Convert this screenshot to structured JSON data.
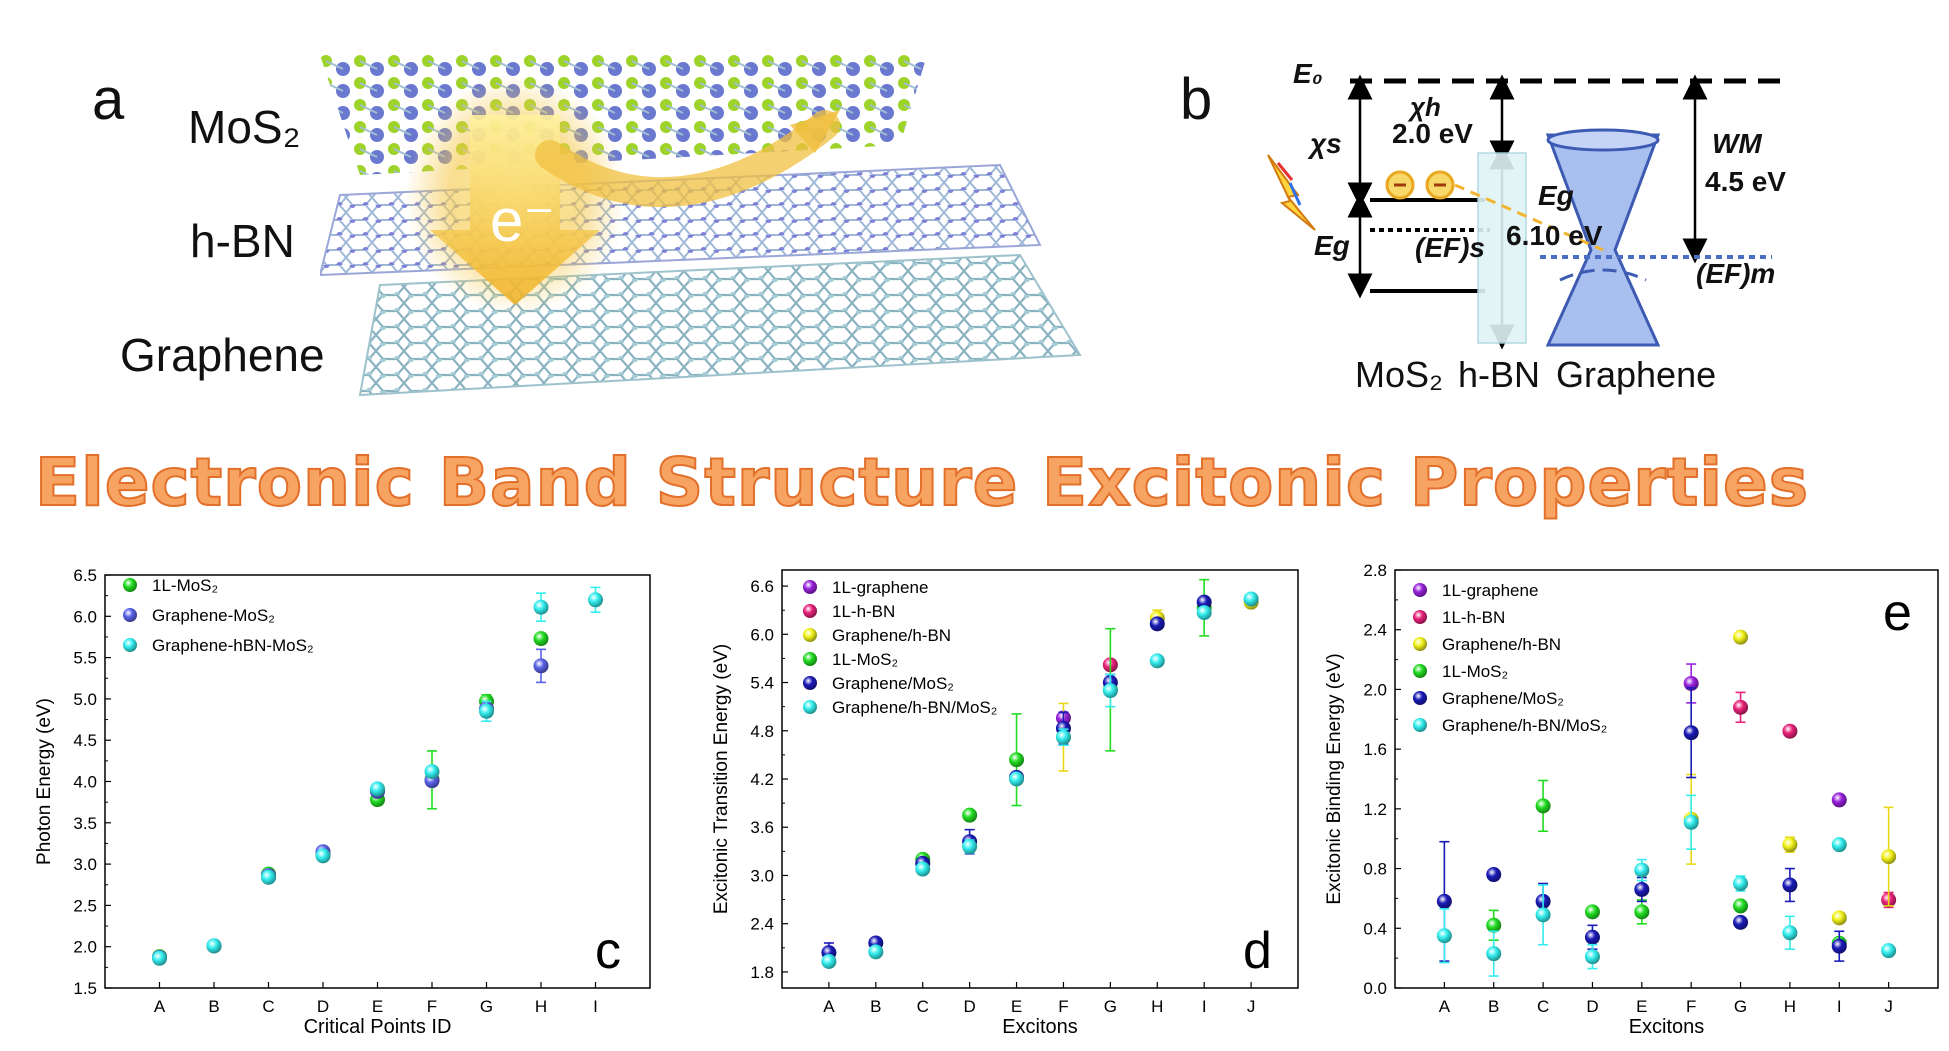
{
  "panel_a": {
    "letter": "a",
    "layers": [
      "MoS₂",
      "h-BN",
      "Graphene"
    ],
    "electron_label": "e⁻"
  },
  "panel_b": {
    "letter": "b",
    "E0": "E₀",
    "chi_s": "χs",
    "chi_h": "χh",
    "chi_h_value": "2.0 eV",
    "W_M": "WM",
    "W_M_value": "4.5 eV",
    "Eg_hbn": "Eg",
    "Eg_hbn_value": "6.10 eV",
    "Eg_mos2": "Eg",
    "EF_s": "(EF)s",
    "EF_m": "(EF)m",
    "bottom_labels": [
      "MoS₂",
      "h-BN",
      "Graphene"
    ]
  },
  "banners": {
    "left": "Electronic Band Structure",
    "right": "Excitonic Properties"
  },
  "colors": {
    "green": "#22dd22",
    "blue": "#5a62e8",
    "navy": "#1a1ab8",
    "cyan": "#33eeee",
    "purple": "#9922dd",
    "magenta": "#e8227a",
    "yellow": "#f2f21a"
  },
  "chart_data": [
    {
      "id": "c",
      "type": "scatter",
      "panel_letter": "c",
      "xlabel": "Critical Points ID",
      "ylabel": "Photon Energy (eV)",
      "categories": [
        "A",
        "B",
        "C",
        "D",
        "E",
        "F",
        "G",
        "H",
        "I"
      ],
      "ylim": [
        1.5,
        6.5
      ],
      "yticks": [
        1.5,
        2.0,
        2.5,
        3.0,
        3.5,
        4.0,
        4.5,
        5.0,
        5.5,
        6.0,
        6.5
      ],
      "legend_position": "top-left",
      "series": [
        {
          "name": "1L-MoS₂",
          "color": "#22dd22",
          "values": [
            1.88,
            2.01,
            2.88,
            3.12,
            3.78,
            4.02,
            4.97,
            5.73,
            null
          ],
          "errors": [
            0,
            0,
            0,
            0.03,
            0,
            0.35,
            0.08,
            0.02,
            null
          ]
        },
        {
          "name": "Graphene-MoS₂",
          "color": "#5a62e8",
          "values": [
            1.87,
            2.01,
            2.86,
            3.15,
            3.88,
            4.01,
            4.88,
            5.4,
            null
          ],
          "errors": [
            0,
            0,
            0,
            0.03,
            0,
            0.05,
            0.05,
            0.2,
            null
          ]
        },
        {
          "name": "Graphene-hBN-MoS₂",
          "color": "#33eeee",
          "values": [
            1.86,
            2.01,
            2.84,
            3.1,
            3.91,
            4.12,
            4.85,
            6.11,
            6.2
          ],
          "errors": [
            0,
            0,
            0,
            0.03,
            0,
            0.05,
            0.12,
            0.17,
            0.15
          ]
        }
      ]
    },
    {
      "id": "d",
      "type": "scatter",
      "panel_letter": "d",
      "xlabel": "Excitons",
      "ylabel": "Excitonic Transition Energy (eV)",
      "categories": [
        "A",
        "B",
        "C",
        "D",
        "E",
        "F",
        "G",
        "H",
        "I",
        "J"
      ],
      "ylim": [
        1.6,
        6.8
      ],
      "yticks": [
        1.8,
        2.4,
        3.0,
        3.6,
        4.2,
        4.8,
        5.4,
        6.0,
        6.6
      ],
      "legend_position": "top-left",
      "series": [
        {
          "name": "1L-graphene",
          "color": "#9922dd",
          "values": [
            null,
            null,
            null,
            null,
            null,
            4.96,
            null,
            null,
            null,
            null
          ],
          "errors": [
            null,
            null,
            null,
            null,
            null,
            0.05,
            null,
            null,
            null,
            null
          ]
        },
        {
          "name": "1L-h-BN",
          "color": "#e8227a",
          "values": [
            null,
            null,
            null,
            null,
            null,
            null,
            5.62,
            null,
            null,
            null
          ],
          "errors": [
            null,
            null,
            null,
            null,
            null,
            null,
            0.05,
            null,
            null,
            null
          ]
        },
        {
          "name": "Graphene/h-BN",
          "color": "#f2f21a",
          "values": [
            null,
            null,
            null,
            null,
            null,
            4.72,
            null,
            6.2,
            null,
            6.4
          ],
          "errors": [
            null,
            null,
            null,
            null,
            null,
            0.42,
            null,
            0.1,
            null,
            0.05
          ]
        },
        {
          "name": "1L-MoS₂",
          "color": "#22dd22",
          "values": [
            null,
            null,
            3.2,
            3.75,
            4.44,
            null,
            5.31,
            null,
            6.33,
            null
          ],
          "errors": [
            null,
            null,
            0.04,
            0.04,
            0.57,
            null,
            0.76,
            null,
            0.35,
            null
          ]
        },
        {
          "name": "Graphene/MoS₂",
          "color": "#1a1ab8",
          "values": [
            2.04,
            2.16,
            3.15,
            3.42,
            4.22,
            4.83,
            5.4,
            6.13,
            6.4,
            null
          ],
          "errors": [
            0.12,
            0.04,
            0.05,
            0.15,
            0.05,
            0.2,
            0.1,
            0.05,
            0.05,
            null
          ]
        },
        {
          "name": "Graphene/h-BN/MoS₂",
          "color": "#33eeee",
          "values": [
            1.93,
            2.05,
            3.08,
            3.36,
            4.2,
            4.72,
            5.3,
            5.67,
            6.27,
            6.44
          ],
          "errors": [
            0.05,
            0.05,
            0.05,
            0.08,
            0.05,
            0.1,
            0.2,
            0,
            0.05,
            0.05
          ]
        }
      ]
    },
    {
      "id": "e",
      "type": "scatter",
      "panel_letter": "e",
      "xlabel": "Excitons",
      "ylabel": "Excitonic Binding Energy (eV)",
      "categories": [
        "A",
        "B",
        "C",
        "D",
        "E",
        "F",
        "G",
        "H",
        "I",
        "J"
      ],
      "ylim": [
        0.0,
        2.8
      ],
      "yticks": [
        0.0,
        0.4,
        0.8,
        1.2,
        1.6,
        2.0,
        2.4,
        2.8
      ],
      "legend_position": "top-left",
      "series": [
        {
          "name": "1L-graphene",
          "color": "#9922dd",
          "values": [
            null,
            null,
            null,
            null,
            null,
            2.04,
            null,
            null,
            1.26,
            null
          ],
          "errors": [
            null,
            null,
            null,
            null,
            null,
            0.13,
            null,
            null,
            0,
            null
          ]
        },
        {
          "name": "1L-h-BN",
          "color": "#e8227a",
          "values": [
            null,
            null,
            null,
            null,
            null,
            null,
            1.88,
            1.72,
            null,
            0.59
          ],
          "errors": [
            null,
            null,
            null,
            null,
            null,
            null,
            0.1,
            0,
            null,
            0.05
          ]
        },
        {
          "name": "Graphene/h-BN",
          "color": "#f2f21a",
          "values": [
            null,
            null,
            null,
            null,
            null,
            1.13,
            2.35,
            0.96,
            0.47,
            0.88
          ],
          "errors": [
            null,
            null,
            null,
            null,
            null,
            0.3,
            0,
            0.05,
            0,
            0.33
          ]
        },
        {
          "name": "1L-MoS₂",
          "color": "#22dd22",
          "values": [
            null,
            0.42,
            1.22,
            0.51,
            0.51,
            null,
            0.55,
            null,
            0.3,
            null
          ],
          "errors": [
            null,
            0.1,
            0.17,
            0,
            0.08,
            null,
            0,
            null,
            0,
            null
          ]
        },
        {
          "name": "Graphene/MoS₂",
          "color": "#1a1ab8",
          "values": [
            0.58,
            0.76,
            0.58,
            0.34,
            0.66,
            1.71,
            0.44,
            0.69,
            0.28,
            null
          ],
          "errors": [
            0.4,
            0,
            0.12,
            0.08,
            0.08,
            0.3,
            0,
            0.11,
            0.1,
            null
          ]
        },
        {
          "name": "Graphene/h-BN/MoS₂",
          "color": "#33eeee",
          "values": [
            0.35,
            0.23,
            0.49,
            0.21,
            0.79,
            1.11,
            0.7,
            0.37,
            0.96,
            0.25
          ],
          "errors": [
            0.18,
            0.15,
            0.2,
            0.08,
            0.07,
            0.18,
            0.05,
            0.11,
            0,
            0
          ]
        }
      ]
    }
  ]
}
